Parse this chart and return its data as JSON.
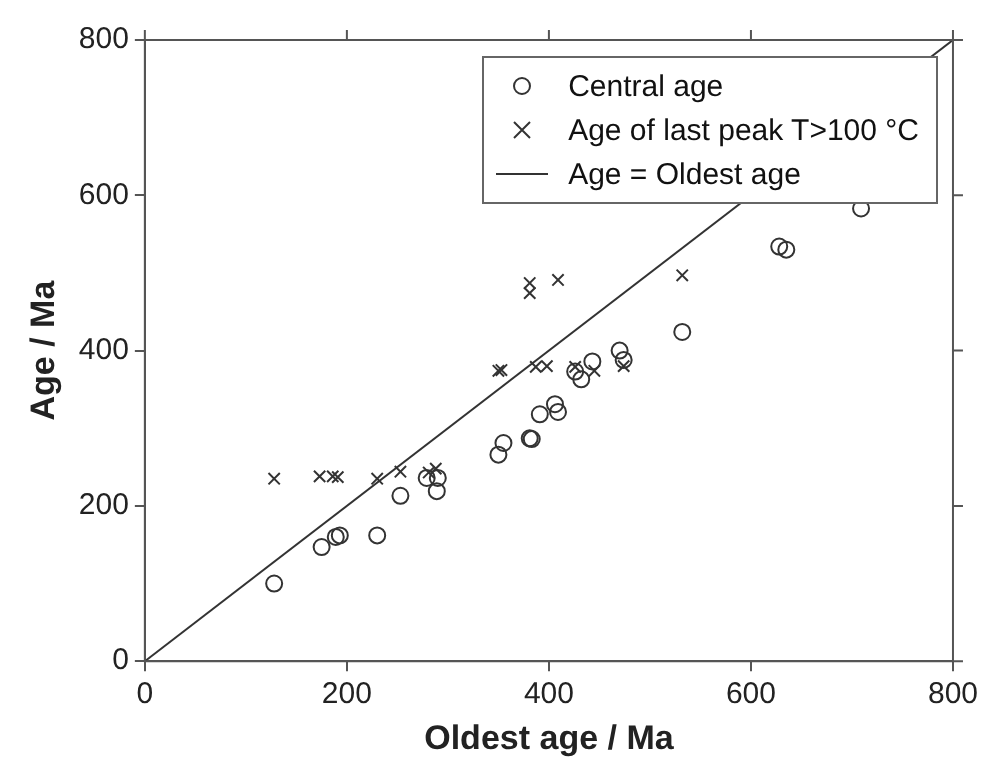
{
  "chart_data": {
    "type": "scatter",
    "xlabel": "Oldest age / Ma",
    "ylabel": "Age / Ma",
    "xlim": [
      0,
      800
    ],
    "ylim": [
      0,
      800
    ],
    "xticks": [
      0,
      200,
      400,
      600,
      800
    ],
    "yticks": [
      0,
      200,
      400,
      600,
      800
    ],
    "grid": false,
    "legend": "top right",
    "series": [
      {
        "name": "Central age",
        "type": "scatter",
        "marker": "circle",
        "color": "#333333",
        "x": [
          128,
          175,
          189,
          193,
          230,
          253,
          279,
          290,
          289,
          350,
          355,
          381,
          383,
          391,
          406,
          409,
          426,
          432,
          443,
          470,
          474,
          532,
          628,
          635,
          709
        ],
        "values": [
          100,
          147,
          160,
          162,
          162,
          213,
          236,
          236,
          219,
          266,
          281,
          287,
          286,
          318,
          331,
          321,
          373,
          363,
          386,
          400,
          388,
          424,
          534,
          530,
          583
        ]
      },
      {
        "name": "Age of last peak T>100 °C",
        "type": "scatter",
        "marker": "cross",
        "color": "#333333",
        "x": [
          128,
          173,
          186,
          191,
          230,
          253,
          281,
          288,
          350,
          353,
          381,
          381,
          409,
          387,
          398,
          426,
          445,
          474,
          532
        ],
        "values": [
          235,
          238,
          238,
          237,
          235,
          244,
          243,
          248,
          374,
          375,
          487,
          474,
          491,
          379,
          380,
          379,
          374,
          380,
          497
        ]
      },
      {
        "name": "Age = Oldest age",
        "type": "line",
        "marker": "none",
        "line_style": "solid",
        "color": "#333333",
        "x": [
          0,
          800
        ],
        "values": [
          0,
          800
        ]
      }
    ]
  }
}
